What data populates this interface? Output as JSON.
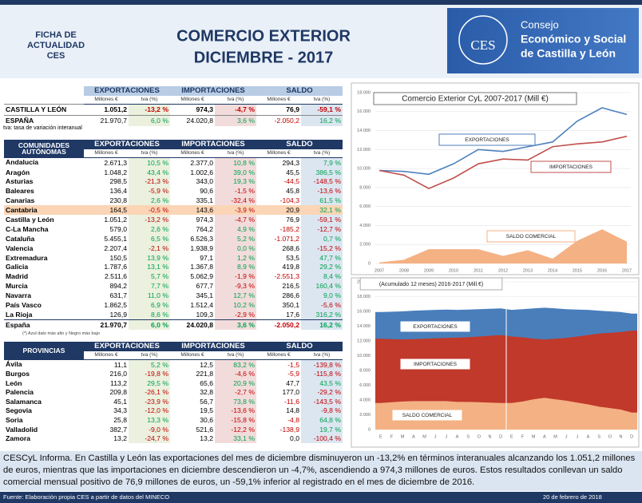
{
  "header": {
    "badge": [
      "FICHA DE",
      "ACTUALIDAD",
      "CES"
    ],
    "title": [
      "COMERCIO EXTERIOR",
      "DICIEMBRE - 2017"
    ],
    "logo": "CES",
    "org": [
      "Consejo",
      "Económico y Social",
      "de Castilla y León"
    ]
  },
  "summary": {
    "groups": [
      "EXPORTACIONES",
      "IMPORTACIONES",
      "SALDO"
    ],
    "subheads": [
      "Millones €",
      "tva (%)",
      "Millones €",
      "tva (%)",
      "Millones €",
      "tva (%)"
    ],
    "rows": [
      [
        "CASTILLA Y LEÓN",
        "1.051,2",
        "-13,2 %",
        "974,3",
        "-4,7 %",
        "76,9",
        "-59,1 %"
      ],
      [
        "ESPAÑA",
        "21.970,7",
        "6,0 %",
        "24.020,8",
        "3,6 %",
        "-2.050,2",
        "16,2 %"
      ]
    ],
    "note": "tva: tasa de variación interanual"
  },
  "communities": {
    "corner": [
      "COMUNIDADES",
      "AUTÓNOMAS"
    ],
    "groups": [
      "EXPORTACIONES",
      "IMPORTACIONES",
      "SALDO"
    ],
    "subheads": [
      "Millones €",
      "tva (%)",
      "Millones €",
      "tva (%)",
      "Millones €",
      "tva (%)"
    ],
    "rows": [
      [
        "Andalucía",
        "2.671,3",
        "10,5 %",
        "2.377,0",
        "10,8 %",
        "294,3",
        "7,9 %"
      ],
      [
        "Aragón",
        "1.048,2",
        "43,4 %",
        "1.002,6",
        "39,0 %",
        "45,5",
        "386,5 %"
      ],
      [
        "Asturias",
        "298,5",
        "-21,3 %",
        "343,0",
        "19,3 %",
        "-44,5",
        "-148,5 %"
      ],
      [
        "Baleares",
        "136,4",
        "-5,9 %",
        "90,6",
        "-1,5 %",
        "45,8",
        "-13,6 %"
      ],
      [
        "Canarias",
        "230,8",
        "2,6 %",
        "335,1",
        "-32,4 %",
        "-104,3",
        "61,5 %"
      ],
      [
        "Cantabria",
        "164,5",
        "-0,5 %",
        "143,6",
        "-3,9 %",
        "20,9",
        "32,1 %"
      ],
      [
        "Castilla y León",
        "1.051,2",
        "-13,2 %",
        "974,3",
        "-4,7 %",
        "76,9",
        "-59,1 %"
      ],
      [
        "C-La Mancha",
        "579,0",
        "2,6 %",
        "764,2",
        "4,9 %",
        "-185,2",
        "-12,7 %"
      ],
      [
        "Cataluña",
        "5.455,1",
        "6,5 %",
        "6.526,3",
        "5,2 %",
        "-1.071,2",
        "0,7 %"
      ],
      [
        "Valencia",
        "2.207,4",
        "-2,1 %",
        "1.938,9",
        "0,0 %",
        "268,6",
        "-15,2 %"
      ],
      [
        "Extremadura",
        "150,5",
        "13,9 %",
        "97,1",
        "1,2 %",
        "53,5",
        "47,7 %"
      ],
      [
        "Galicia",
        "1.787,6",
        "13,1 %",
        "1.367,8",
        "8,9 %",
        "419,8",
        "29,2 %"
      ],
      [
        "Madrid",
        "2.511,6",
        "5,7 %",
        "5.062,9",
        "-1,9 %",
        "-2.551,3",
        "8,4 %"
      ],
      [
        "Murcia",
        "894,2",
        "7,7 %",
        "677,7",
        "-9,3 %",
        "216,5",
        "160,4 %"
      ],
      [
        "Navarra",
        "631,7",
        "11,0 %",
        "345,1",
        "12,7 %",
        "286,6",
        "9,0 %"
      ],
      [
        "País Vasco",
        "1.862,5",
        "6,9 %",
        "1.512,4",
        "10,2 %",
        "350,1",
        "-5,6 %"
      ],
      [
        "La Rioja",
        "126,9",
        "8,6 %",
        "109,3",
        "-2,9 %",
        "17,6",
        "316,2 %"
      ],
      [
        "España",
        "21.970,7",
        "6,0 %",
        "24.020,8",
        "3,6 %",
        "-2.050,2",
        "16,2 %"
      ]
    ],
    "note": "(*) Azul dato más alto y Negro más bajo"
  },
  "provinces": {
    "corner": [
      "PROVINCIAS"
    ],
    "groups": [
      "EXPORTACIONES",
      "IMPORTACIONES",
      "SALDO"
    ],
    "subheads": [
      "Millones €",
      "tva (%)",
      "Millones €",
      "tva (%)",
      "Millones €",
      "tva (%)"
    ],
    "rows": [
      [
        "Ávila",
        "11,1",
        "5,2 %",
        "12,5",
        "83,2 %",
        "-1,5",
        "-139,8 %"
      ],
      [
        "Burgos",
        "216,0",
        "-19,8 %",
        "221,8",
        "-4,6 %",
        "-5,9",
        "-115,8 %"
      ],
      [
        "León",
        "113,2",
        "29,5 %",
        "65,6",
        "20,9 %",
        "47,7",
        "43,5 %"
      ],
      [
        "Palencia",
        "209,8",
        "-26,1 %",
        "32,8",
        "-2,7 %",
        "177,0",
        "-29,2 %"
      ],
      [
        "Salamanca",
        "45,1",
        "-23,9 %",
        "56,7",
        "73,8 %",
        "-11,6",
        "-143,5 %"
      ],
      [
        "Segovia",
        "34,3",
        "-12,0 %",
        "19,5",
        "-13,6 %",
        "14,8",
        "-9,8 %"
      ],
      [
        "Soria",
        "25,8",
        "13,3 %",
        "30,6",
        "-15,8 %",
        "-4,8",
        "64,8 %"
      ],
      [
        "Valladolid",
        "382,7",
        "-9,0 %",
        "521,6",
        "-12,2 %",
        "-138,9",
        "19,7 %"
      ],
      [
        "Zamora",
        "13,2",
        "-24,7 %",
        "13,2",
        "33,1 %",
        "0,0",
        "-100,4 %"
      ]
    ]
  },
  "charts": [
    {
      "type": "line",
      "title": "Comercio Exterior CyL 2007-2017 (Mill €)",
      "x": [
        2007,
        2008,
        2009,
        2010,
        2011,
        2012,
        2013,
        2014,
        2015,
        2016,
        2017
      ],
      "xlim": [
        2007,
        2017
      ],
      "ylim": [
        0,
        18000
      ],
      "yticks": [
        0,
        {
          "value": 2000,
          "label": "2.000"
        },
        {
          "value": 4000,
          "label": "4.000"
        },
        {
          "value": 6000,
          "label": "6.000"
        },
        {
          "value": 8000,
          "label": "8.000"
        },
        {
          "value": 10000,
          "label": "10.000"
        },
        {
          "value": 12000,
          "label": "12.000"
        },
        {
          "value": 14000,
          "label": "14.000"
        },
        {
          "value": 16000,
          "label": "16.000"
        },
        {
          "value": 18000,
          "label": "18.000"
        }
      ],
      "grid": true,
      "series": [
        {
          "name": "EXPORTACIONES",
          "style": "line",
          "color": "#4f81bd",
          "values": [
            9800,
            9700,
            9400,
            10500,
            12000,
            11800,
            12300,
            12800,
            15000,
            16400,
            15700
          ]
        },
        {
          "name": "IMPORTACIONES",
          "style": "line",
          "color": "#c0504d",
          "values": [
            9800,
            9300,
            7900,
            9000,
            10500,
            11000,
            10900,
            12300,
            12600,
            12800,
            13400
          ]
        },
        {
          "name": "SALDO COMERCIAL",
          "style": "area",
          "color": "#f4b183",
          "values": [
            100,
            400,
            1500,
            1500,
            1500,
            800,
            1400,
            500,
            2400,
            3600,
            2300
          ]
        }
      ]
    },
    {
      "type": "area",
      "title": "(Acumulado 12 meses) 2016-2017 (Mill.€)",
      "categories": [
        "E",
        "F",
        "M",
        "A",
        "M",
        "J",
        "J",
        "A",
        "S",
        "O",
        "N",
        "D",
        "E",
        "F",
        "M",
        "A",
        "M",
        "J",
        "J",
        "A",
        "S",
        "O",
        "N",
        "D"
      ],
      "ylim": [
        0,
        20000
      ],
      "yticks": [
        0,
        {
          "value": 2000,
          "label": "2.000"
        },
        {
          "value": 4000,
          "label": "4.000"
        },
        {
          "value": 6000,
          "label": "6.000"
        },
        {
          "value": 8000,
          "label": "8.000"
        },
        {
          "value": 10000,
          "label": "10.000"
        },
        {
          "value": 12000,
          "label": "12.000"
        },
        {
          "value": 14000,
          "label": "14.000"
        },
        {
          "value": 16000,
          "label": "16.000"
        },
        {
          "value": 18000,
          "label": "18.000"
        },
        {
          "value": 20000,
          "label": "20.000"
        }
      ],
      "grid": true,
      "series": [
        {
          "name": "EXPORTACIONES",
          "style": "area",
          "color": "#4a7ebb",
          "values": [
            15900,
            15950,
            16000,
            16100,
            16150,
            16200,
            16250,
            16200,
            16250,
            16300,
            16350,
            16400,
            16200,
            16300,
            16400,
            16500,
            16400,
            16300,
            16250,
            16200,
            16100,
            16000,
            15900,
            15700
          ]
        },
        {
          "name": "IMPORTACIONES",
          "style": "area",
          "color": "#c0392b",
          "values": [
            12300,
            12250,
            12200,
            12250,
            12300,
            12350,
            12400,
            12450,
            12500,
            12600,
            12700,
            12800,
            12600,
            12500,
            12300,
            12200,
            12300,
            12400,
            12600,
            12800,
            13000,
            13100,
            13200,
            13400
          ]
        },
        {
          "name": "SALDO COMERCIAL",
          "style": "area",
          "color": "#f4b183",
          "values": [
            3600,
            3700,
            3800,
            3850,
            3850,
            3850,
            3850,
            3750,
            3750,
            3700,
            3650,
            3600,
            3600,
            3800,
            4100,
            4300,
            4100,
            3900,
            3650,
            3400,
            3100,
            2900,
            2700,
            2300
          ]
        }
      ]
    }
  ],
  "text": "CESCyL Informa. En Castilla y León las exportaciones del mes de diciembre disminuyeron un -13,2% en términos interanuales alcanzando los 1.051,2 millones de euros, mientras que las importaciones en diciembre descendieron un -4,7%, ascendiendo a 974,3 millones de euros. Estos resultados conllevan un saldo comercial mensual positivo de 76,9 millones de euros, un -59,1% inferior al registrado en el mes de diciembre de 2016.",
  "footer": {
    "source": "Fuente: Elaboración propia CES a partir de datos del MINECO",
    "date": "20 de febrero de 2018"
  }
}
